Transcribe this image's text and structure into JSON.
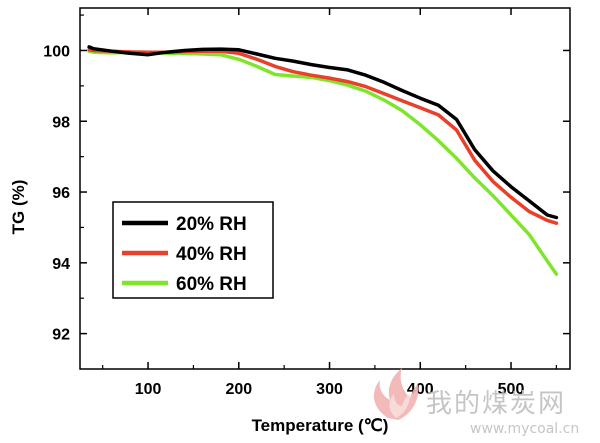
{
  "chart_data": {
    "type": "line",
    "title": "",
    "xlabel": "Temperature (℃)",
    "ylabel": "TG (%)",
    "xlim": [
      25,
      565
    ],
    "ylim": [
      91,
      101.2
    ],
    "xticks": [
      100,
      200,
      300,
      400,
      500
    ],
    "yticks": [
      92,
      94,
      96,
      98,
      100
    ],
    "grid": false,
    "legend_position": "lower-left",
    "series": [
      {
        "name": "20% RH",
        "color": "#000000",
        "x": [
          35,
          40,
          60,
          80,
          100,
          120,
          140,
          160,
          180,
          200,
          220,
          240,
          260,
          280,
          300,
          320,
          340,
          360,
          380,
          400,
          420,
          440,
          460,
          480,
          500,
          520,
          540,
          550
        ],
        "y": [
          100.1,
          100.05,
          99.98,
          99.92,
          99.88,
          99.95,
          100.0,
          100.03,
          100.04,
          100.02,
          99.9,
          99.78,
          99.7,
          99.6,
          99.52,
          99.45,
          99.3,
          99.1,
          98.87,
          98.65,
          98.45,
          98.05,
          97.2,
          96.6,
          96.15,
          95.75,
          95.35,
          95.28
        ]
      },
      {
        "name": "40% RH",
        "color": "#e8402a",
        "x": [
          35,
          40,
          60,
          80,
          100,
          120,
          140,
          160,
          180,
          200,
          220,
          240,
          260,
          280,
          300,
          320,
          340,
          360,
          380,
          400,
          420,
          440,
          460,
          480,
          500,
          520,
          540,
          550
        ],
        "y": [
          100.02,
          100.0,
          99.98,
          99.96,
          99.95,
          99.95,
          99.97,
          99.98,
          99.98,
          99.92,
          99.75,
          99.55,
          99.4,
          99.3,
          99.22,
          99.12,
          98.98,
          98.78,
          98.58,
          98.38,
          98.18,
          97.75,
          96.9,
          96.3,
          95.85,
          95.45,
          95.2,
          95.12
        ]
      },
      {
        "name": "60% RH",
        "color": "#7fe52c",
        "x": [
          35,
          40,
          60,
          80,
          100,
          120,
          140,
          160,
          180,
          200,
          220,
          240,
          260,
          280,
          300,
          320,
          340,
          360,
          380,
          400,
          420,
          440,
          460,
          480,
          500,
          520,
          540,
          550
        ],
        "y": [
          99.98,
          99.95,
          99.93,
          99.95,
          99.95,
          99.92,
          99.92,
          99.9,
          99.88,
          99.75,
          99.55,
          99.32,
          99.28,
          99.24,
          99.15,
          99.02,
          98.85,
          98.6,
          98.3,
          97.9,
          97.45,
          96.95,
          96.4,
          95.9,
          95.35,
          94.8,
          94.05,
          93.68
        ]
      }
    ]
  },
  "watermark": {
    "brand": "我的煤炭网",
    "url": "www.mycoal.cn"
  }
}
